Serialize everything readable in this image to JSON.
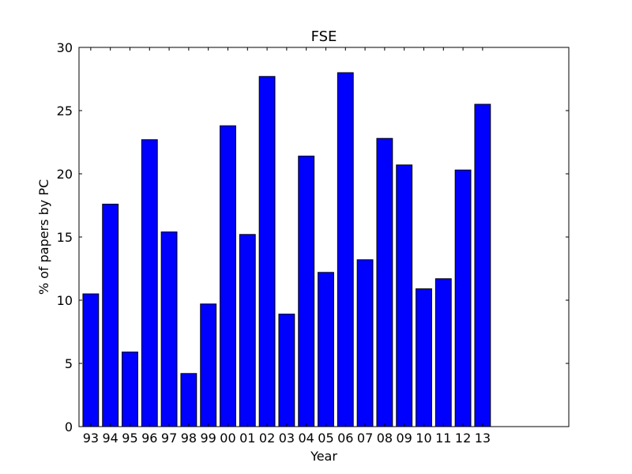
{
  "chart_data": {
    "type": "bar",
    "title": "FSE",
    "xlabel": "Year",
    "ylabel": "% of papers by PC",
    "categories": [
      "93",
      "94",
      "95",
      "96",
      "97",
      "98",
      "99",
      "00",
      "01",
      "02",
      "03",
      "04",
      "05",
      "06",
      "07",
      "08",
      "09",
      "10",
      "11",
      "12",
      "13"
    ],
    "values": [
      10.5,
      17.6,
      5.9,
      22.7,
      15.4,
      4.2,
      9.7,
      23.8,
      15.2,
      27.7,
      8.9,
      21.4,
      12.2,
      28.0,
      13.2,
      22.8,
      20.7,
      10.9,
      11.7,
      20.3,
      25.5
    ],
    "ylim": [
      0,
      30
    ],
    "yticks": [
      0,
      5,
      10,
      15,
      20,
      25,
      30
    ],
    "bar_color": "#0000ff",
    "edge_color": "#000000",
    "grid": false
  }
}
